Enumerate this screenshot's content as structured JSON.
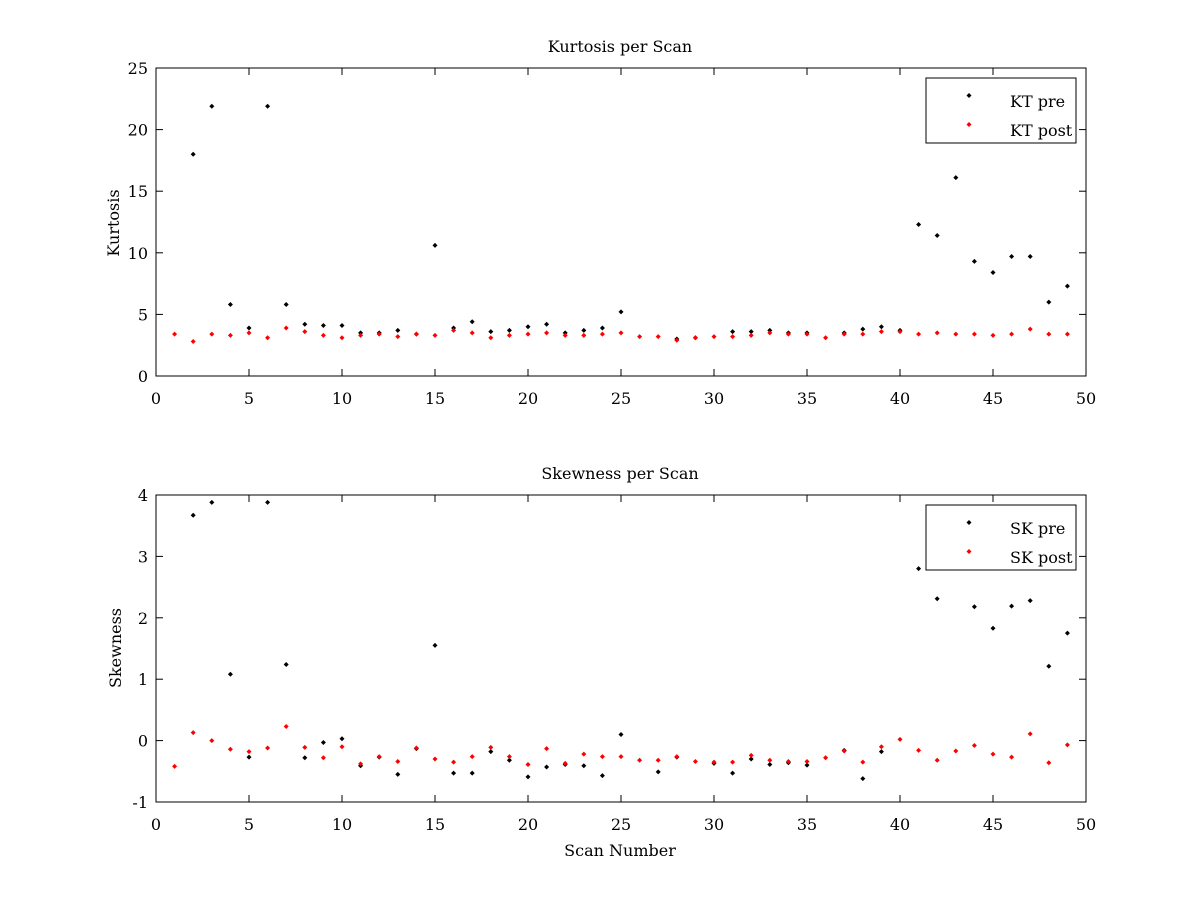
{
  "chart_data": [
    {
      "type": "scatter",
      "title": "Kurtosis per Scan",
      "xlabel": "",
      "ylabel": "Kurtosis",
      "xlim": [
        0,
        50
      ],
      "ylim": [
        0,
        25
      ],
      "xticks": [
        0,
        5,
        10,
        15,
        20,
        25,
        30,
        35,
        40,
        45,
        50
      ],
      "yticks": [
        0,
        5,
        10,
        15,
        20,
        25
      ],
      "legend_position": "top-right",
      "series": [
        {
          "name": "KT pre",
          "color": "#000000",
          "x": [
            2,
            3,
            4,
            5,
            6,
            7,
            8,
            9,
            10,
            11,
            12,
            13,
            14,
            15,
            16,
            17,
            18,
            19,
            20,
            21,
            22,
            23,
            24,
            25,
            28,
            29,
            31,
            32,
            33,
            34,
            35,
            37,
            38,
            39,
            40,
            41,
            42,
            43,
            44,
            45,
            46,
            47,
            48,
            49
          ],
          "values": [
            18.0,
            21.9,
            5.8,
            3.9,
            21.9,
            5.8,
            4.2,
            4.1,
            4.1,
            3.5,
            3.5,
            3.7,
            3.4,
            10.6,
            3.9,
            4.4,
            3.6,
            3.7,
            4.0,
            4.2,
            3.5,
            3.7,
            3.9,
            5.2,
            3.0,
            3.1,
            3.6,
            3.6,
            3.7,
            3.5,
            3.5,
            3.5,
            3.8,
            4.0,
            3.7,
            12.3,
            11.4,
            16.1,
            9.3,
            8.4,
            9.7,
            9.7,
            6.0,
            7.3
          ]
        },
        {
          "name": "KT post",
          "color": "#ff0000",
          "x": [
            1,
            2,
            3,
            4,
            5,
            6,
            7,
            8,
            9,
            10,
            11,
            12,
            13,
            14,
            15,
            16,
            17,
            18,
            19,
            20,
            21,
            22,
            23,
            24,
            25,
            26,
            27,
            28,
            29,
            30,
            31,
            32,
            33,
            34,
            35,
            36,
            37,
            38,
            39,
            40,
            41,
            42,
            43,
            44,
            45,
            46,
            47,
            48,
            49
          ],
          "values": [
            3.4,
            2.8,
            3.4,
            3.3,
            3.5,
            3.1,
            3.9,
            3.6,
            3.3,
            3.1,
            3.3,
            3.4,
            3.2,
            3.4,
            3.3,
            3.7,
            3.5,
            3.1,
            3.3,
            3.4,
            3.5,
            3.3,
            3.3,
            3.4,
            3.5,
            3.2,
            3.2,
            2.9,
            3.1,
            3.2,
            3.2,
            3.3,
            3.5,
            3.4,
            3.4,
            3.1,
            3.4,
            3.4,
            3.6,
            3.6,
            3.4,
            3.5,
            3.4,
            3.4,
            3.3,
            3.4,
            3.8,
            3.4,
            3.4
          ]
        }
      ]
    },
    {
      "type": "scatter",
      "title": "Skewness per Scan",
      "xlabel": "Scan Number",
      "ylabel": "Skewness",
      "xlim": [
        0,
        50
      ],
      "ylim": [
        -1,
        4
      ],
      "xticks": [
        0,
        5,
        10,
        15,
        20,
        25,
        30,
        35,
        40,
        45,
        50
      ],
      "yticks": [
        -1,
        0,
        1,
        2,
        3,
        4
      ],
      "legend_position": "top-right",
      "series": [
        {
          "name": "SK pre",
          "color": "#000000",
          "x": [
            2,
            3,
            4,
            5,
            6,
            7,
            8,
            9,
            10,
            11,
            12,
            13,
            14,
            15,
            16,
            17,
            18,
            19,
            20,
            21,
            22,
            23,
            24,
            25,
            27,
            28,
            30,
            31,
            32,
            33,
            34,
            35,
            37,
            38,
            39,
            41,
            42,
            44,
            45,
            46,
            47,
            48,
            49
          ],
          "values": [
            3.67,
            3.88,
            1.08,
            -0.27,
            3.88,
            1.24,
            -0.28,
            -0.03,
            0.03,
            -0.41,
            -0.27,
            -0.55,
            -0.13,
            1.55,
            -0.53,
            -0.53,
            -0.18,
            -0.32,
            -0.59,
            -0.43,
            -0.39,
            -0.41,
            -0.57,
            0.1,
            -0.51,
            -0.27,
            -0.37,
            -0.53,
            -0.3,
            -0.39,
            -0.36,
            -0.4,
            -0.16,
            -0.62,
            -0.18,
            2.8,
            2.31,
            2.18,
            1.83,
            2.19,
            2.28,
            1.21,
            1.75
          ]
        },
        {
          "name": "SK post",
          "color": "#ff0000",
          "x": [
            1,
            2,
            3,
            4,
            5,
            6,
            7,
            8,
            9,
            10,
            11,
            12,
            13,
            14,
            15,
            16,
            17,
            18,
            19,
            20,
            21,
            22,
            23,
            24,
            25,
            26,
            27,
            28,
            29,
            30,
            31,
            32,
            33,
            34,
            35,
            36,
            37,
            38,
            39,
            40,
            41,
            42,
            43,
            44,
            45,
            46,
            47,
            48,
            49
          ],
          "values": [
            -0.42,
            0.13,
            0.0,
            -0.14,
            -0.18,
            -0.12,
            0.23,
            -0.11,
            -0.28,
            -0.1,
            -0.38,
            -0.26,
            -0.34,
            -0.12,
            -0.3,
            -0.35,
            -0.26,
            -0.11,
            -0.26,
            -0.39,
            -0.13,
            -0.37,
            -0.22,
            -0.26,
            -0.26,
            -0.32,
            -0.32,
            -0.26,
            -0.34,
            -0.35,
            -0.35,
            -0.24,
            -0.32,
            -0.34,
            -0.34,
            -0.28,
            -0.17,
            -0.35,
            -0.1,
            0.02,
            -0.16,
            -0.32,
            -0.17,
            -0.08,
            -0.22,
            -0.27,
            0.11,
            -0.36,
            -0.07
          ]
        }
      ]
    }
  ]
}
